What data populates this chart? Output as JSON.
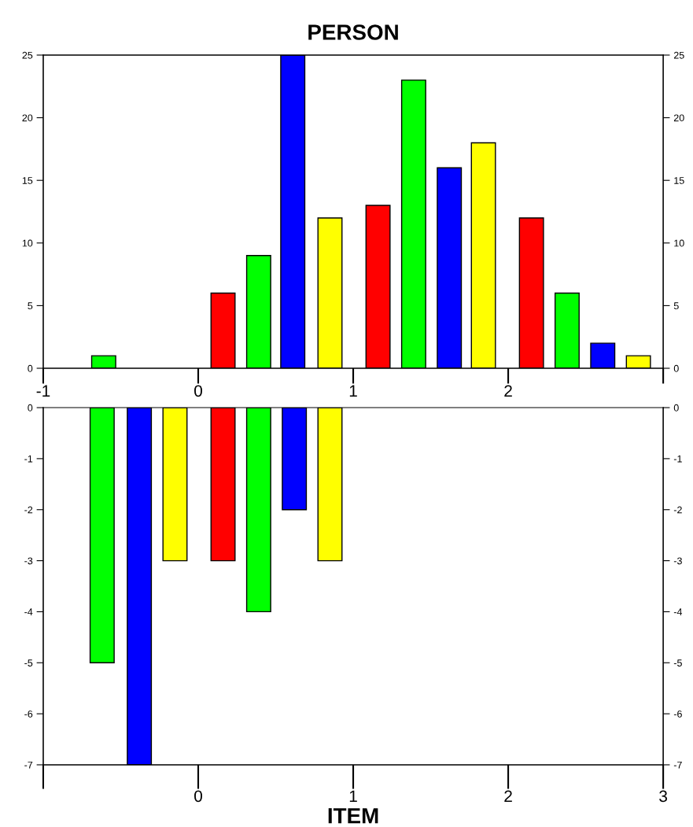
{
  "chart_data": [
    {
      "type": "bar",
      "title": "PERSON",
      "x": [
        -0.61,
        0.16,
        0.39,
        0.61,
        0.85,
        1.16,
        1.39,
        1.62,
        1.84,
        2.15,
        2.38,
        2.61,
        2.84
      ],
      "values": [
        1,
        6,
        9,
        25,
        12,
        13,
        23,
        16,
        18,
        12,
        6,
        2,
        1
      ],
      "colors": [
        "#00ff00",
        "#ff0000",
        "#00ff00",
        "#0000ff",
        "#ffff00",
        "#ff0000",
        "#00ff00",
        "#0000ff",
        "#ffff00",
        "#ff0000",
        "#00ff00",
        "#0000ff",
        "#ffff00"
      ],
      "xlim": [
        -1,
        3
      ],
      "xticks": [
        -1,
        0,
        1,
        2,
        {
          "value": 3,
          "label": null
        }
      ],
      "ylim": [
        0,
        25
      ],
      "yticks": [
        0,
        5,
        10,
        15,
        20,
        25
      ],
      "y2lim": [
        0,
        25
      ],
      "y2ticks": [
        0,
        5,
        10,
        15,
        20,
        25
      ],
      "grid": false,
      "legend": false
    },
    {
      "type": "bar",
      "xlabel": "ITEM",
      "x": [
        -0.62,
        -0.38,
        -0.15,
        0.16,
        0.39,
        0.62,
        0.85
      ],
      "values": [
        -5,
        -7,
        -3,
        -3,
        -4,
        -2,
        -3
      ],
      "colors": [
        "#00ff00",
        "#0000ff",
        "#ffff00",
        "#ff0000",
        "#00ff00",
        "#0000ff",
        "#ffff00"
      ],
      "xlim": [
        -1,
        3
      ],
      "xticks": [
        {
          "value": -1,
          "label": null
        },
        0,
        1,
        2,
        3
      ],
      "ylim": [
        -7,
        0
      ],
      "yticks": [
        -7,
        -6,
        -5,
        -4,
        -3,
        -2,
        -1,
        0
      ],
      "y2lim": [
        -7,
        0
      ],
      "y2ticks": [
        -7,
        -6,
        -5,
        -4,
        -3,
        -2,
        -1,
        0
      ],
      "grid": false,
      "legend": false
    }
  ]
}
